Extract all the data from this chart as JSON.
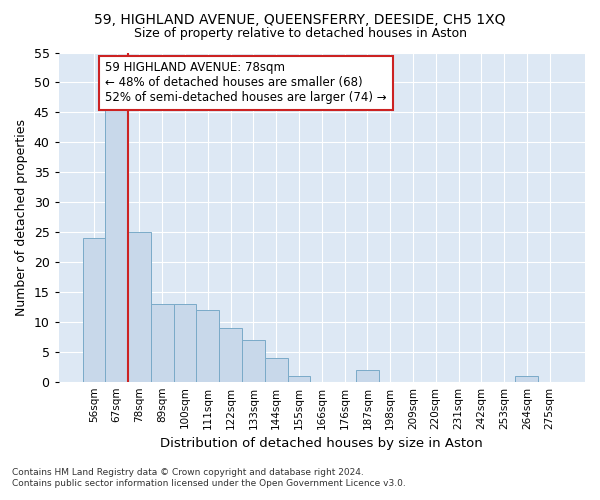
{
  "title": "59, HIGHLAND AVENUE, QUEENSFERRY, DEESIDE, CH5 1XQ",
  "subtitle": "Size of property relative to detached houses in Aston",
  "xlabel": "Distribution of detached houses by size in Aston",
  "ylabel": "Number of detached properties",
  "categories": [
    "56sqm",
    "67sqm",
    "78sqm",
    "89sqm",
    "100sqm",
    "111sqm",
    "122sqm",
    "133sqm",
    "144sqm",
    "155sqm",
    "166sqm",
    "176sqm",
    "187sqm",
    "198sqm",
    "209sqm",
    "220sqm",
    "231sqm",
    "242sqm",
    "253sqm",
    "264sqm",
    "275sqm"
  ],
  "values": [
    24,
    46,
    25,
    13,
    13,
    12,
    9,
    7,
    4,
    1,
    0,
    0,
    2,
    0,
    0,
    0,
    0,
    0,
    0,
    1,
    0
  ],
  "bar_color": "#c8d8ea",
  "bar_edge_color": "#7aaac8",
  "highlight_bar_index": 2,
  "highlight_line_color": "#cc2222",
  "annotation_text": "59 HIGHLAND AVENUE: 78sqm\n← 48% of detached houses are smaller (68)\n52% of semi-detached houses are larger (74) →",
  "annotation_box_color": "#ffffff",
  "annotation_box_edge_color": "#cc2222",
  "ylim": [
    0,
    55
  ],
  "yticks": [
    0,
    5,
    10,
    15,
    20,
    25,
    30,
    35,
    40,
    45,
    50,
    55
  ],
  "fig_background": "#ffffff",
  "plot_background": "#dde8f4",
  "grid_color": "#ffffff",
  "footer": "Contains HM Land Registry data © Crown copyright and database right 2024.\nContains public sector information licensed under the Open Government Licence v3.0."
}
